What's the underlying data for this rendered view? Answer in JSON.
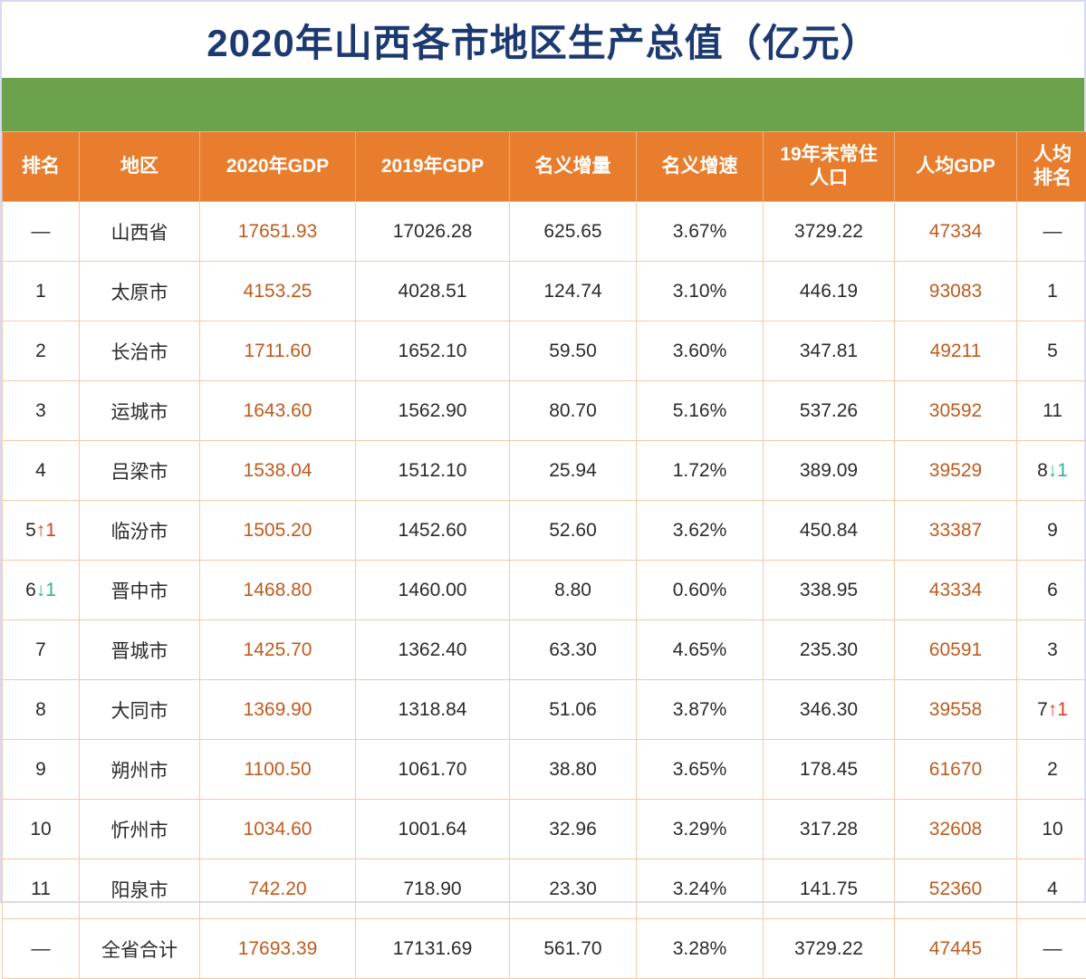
{
  "title": "2020年山西各市地区生产总值（亿元）",
  "chart_data": {
    "type": "table",
    "title": "2020年山西各市地区生产总值（亿元）",
    "headers": [
      "排名",
      "地区",
      "2020年GDP",
      "2019年GDP",
      "名义增量",
      "名义增速",
      "19年末常住\n人口",
      "人均GDP",
      "人均\n排名"
    ],
    "rows": [
      {
        "rank": "—",
        "region": "山西省",
        "gdp2020": "17651.93",
        "gdp2019": "17026.28",
        "increase": "625.65",
        "growth": "3.67%",
        "population": "3729.22",
        "per_capita_gdp": "47334",
        "per_capita_rank": "—"
      },
      {
        "rank": "1",
        "region": "太原市",
        "gdp2020": "4153.25",
        "gdp2019": "4028.51",
        "increase": "124.74",
        "growth": "3.10%",
        "population": "446.19",
        "per_capita_gdp": "93083",
        "per_capita_rank": "1"
      },
      {
        "rank": "2",
        "region": "长治市",
        "gdp2020": "1711.60",
        "gdp2019": "1652.10",
        "increase": "59.50",
        "growth": "3.60%",
        "population": "347.81",
        "per_capita_gdp": "49211",
        "per_capita_rank": "5"
      },
      {
        "rank": "3",
        "region": "运城市",
        "gdp2020": "1643.60",
        "gdp2019": "1562.90",
        "increase": "80.70",
        "growth": "5.16%",
        "population": "537.26",
        "per_capita_gdp": "30592",
        "per_capita_rank": "11"
      },
      {
        "rank": "4",
        "region": "吕梁市",
        "gdp2020": "1538.04",
        "gdp2019": "1512.10",
        "increase": "25.94",
        "growth": "1.72%",
        "population": "389.09",
        "per_capita_gdp": "39529",
        "per_capita_rank": "8↓1"
      },
      {
        "rank": "5↑1",
        "region": "临汾市",
        "gdp2020": "1505.20",
        "gdp2019": "1452.60",
        "increase": "52.60",
        "growth": "3.62%",
        "population": "450.84",
        "per_capita_gdp": "33387",
        "per_capita_rank": "9"
      },
      {
        "rank": "6↓1",
        "region": "晋中市",
        "gdp2020": "1468.80",
        "gdp2019": "1460.00",
        "increase": "8.80",
        "growth": "0.60%",
        "population": "338.95",
        "per_capita_gdp": "43334",
        "per_capita_rank": "6"
      },
      {
        "rank": "7",
        "region": "晋城市",
        "gdp2020": "1425.70",
        "gdp2019": "1362.40",
        "increase": "63.30",
        "growth": "4.65%",
        "population": "235.30",
        "per_capita_gdp": "60591",
        "per_capita_rank": "3"
      },
      {
        "rank": "8",
        "region": "大同市",
        "gdp2020": "1369.90",
        "gdp2019": "1318.84",
        "increase": "51.06",
        "growth": "3.87%",
        "population": "346.30",
        "per_capita_gdp": "39558",
        "per_capita_rank": "7↑1"
      },
      {
        "rank": "9",
        "region": "朔州市",
        "gdp2020": "1100.50",
        "gdp2019": "1061.70",
        "increase": "38.80",
        "growth": "3.65%",
        "population": "178.45",
        "per_capita_gdp": "61670",
        "per_capita_rank": "2"
      },
      {
        "rank": "10",
        "region": "忻州市",
        "gdp2020": "1034.60",
        "gdp2019": "1001.64",
        "increase": "32.96",
        "growth": "3.29%",
        "population": "317.28",
        "per_capita_gdp": "32608",
        "per_capita_rank": "10"
      },
      {
        "rank": "11",
        "region": "阳泉市",
        "gdp2020": "742.20",
        "gdp2019": "718.90",
        "increase": "23.30",
        "growth": "3.24%",
        "population": "141.75",
        "per_capita_gdp": "52360",
        "per_capita_rank": "4"
      },
      {
        "rank": "—",
        "region": "全省合计",
        "gdp2020": "17693.39",
        "gdp2019": "17131.69",
        "increase": "561.70",
        "growth": "3.28%",
        "population": "3729.22",
        "per_capita_gdp": "47445",
        "per_capita_rank": "—"
      }
    ]
  },
  "table": {
    "columns": [
      {
        "key": "rank",
        "arrows": true
      },
      {
        "key": "region"
      },
      {
        "key": "gdp2020",
        "cls": "orange"
      },
      {
        "key": "gdp2019"
      },
      {
        "key": "increase"
      },
      {
        "key": "growth"
      },
      {
        "key": "population"
      },
      {
        "key": "per_capita_gdp",
        "cls": "orange"
      },
      {
        "key": "per_capita_rank",
        "arrows": true
      }
    ],
    "colors": {
      "header_bg": "#e87e2d",
      "title_text": "#1c3a70",
      "banner_green": "#6ca24b",
      "value_orange": "#bf5b1d",
      "arrow_up_red": "#e03b24",
      "arrow_down_teal": "#2eb393",
      "grid_line": "#f5c9a8"
    }
  }
}
